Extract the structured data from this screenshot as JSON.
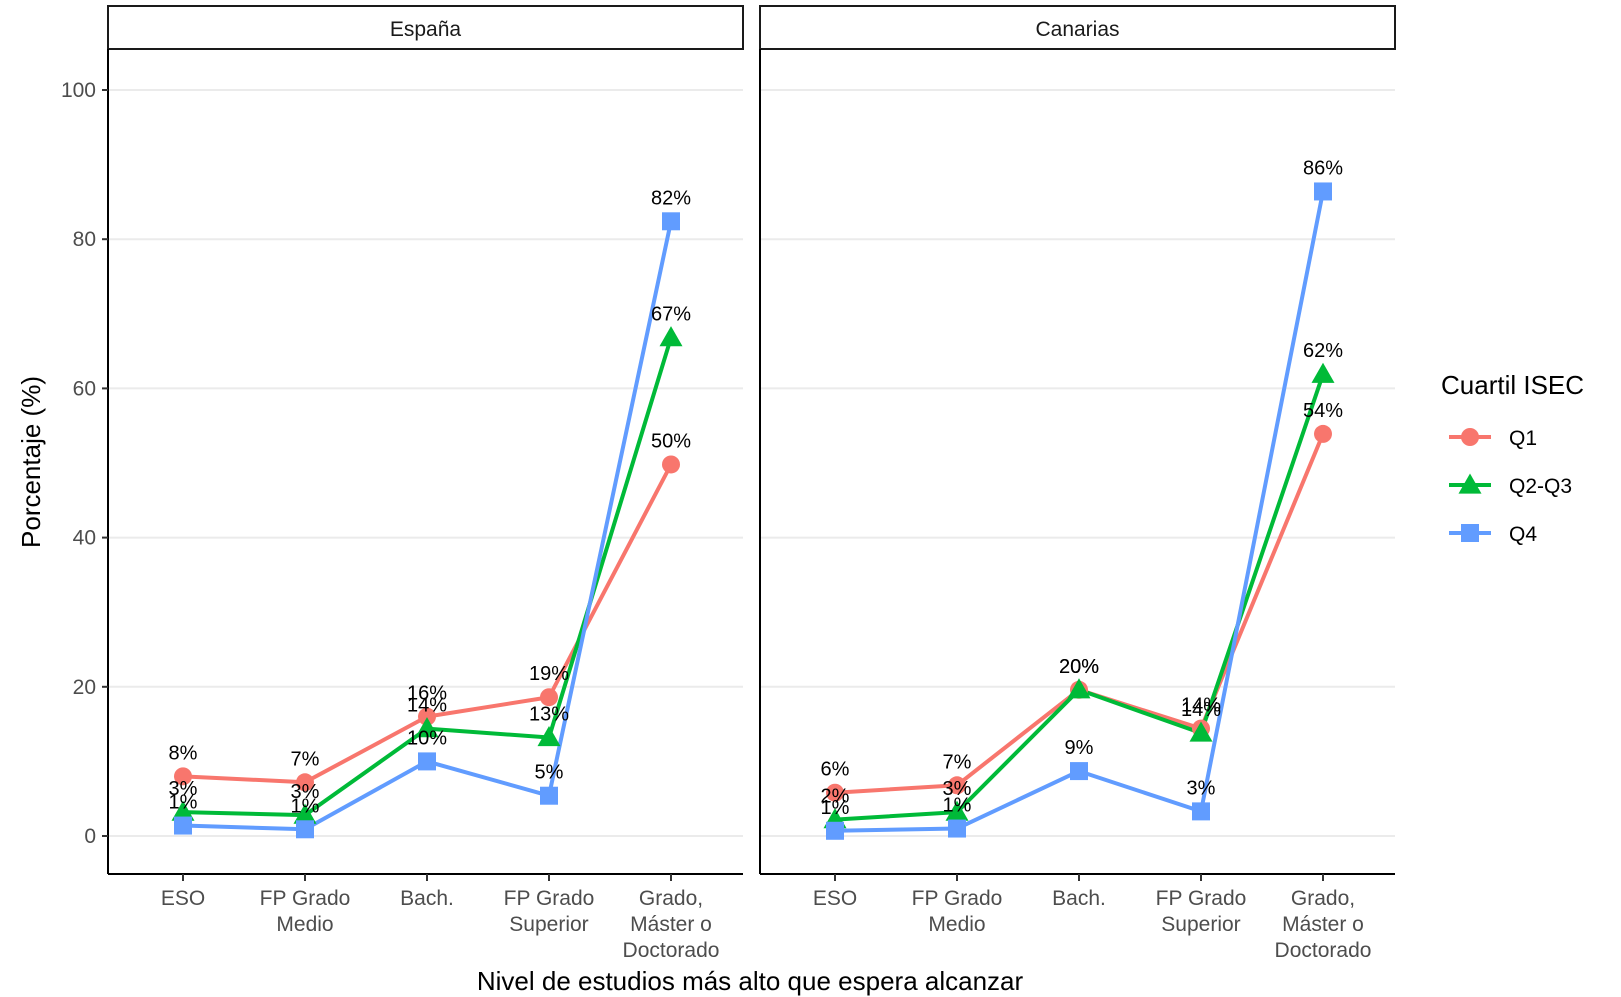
{
  "chart_data": {
    "type": "line",
    "xlabel": "Nivel de estudios más alto que espera alcanzar",
    "ylabel": "Porcentaje (%)",
    "ylim": [
      0,
      100
    ],
    "yticks": [
      0,
      20,
      40,
      60,
      80,
      100
    ],
    "grid": true,
    "categories": [
      [
        "ESO"
      ],
      [
        "FP Grado",
        "Medio"
      ],
      [
        "Bach."
      ],
      [
        "FP Grado",
        "Superior"
      ],
      [
        "Grado,",
        "Máster o",
        "Doctorado"
      ]
    ],
    "legend": {
      "title": "Cuartil ISEC",
      "placement": "right",
      "items": [
        {
          "name": "Q1",
          "color": "#F8766D",
          "marker": "circle"
        },
        {
          "name": "Q2-Q3",
          "color": "#00BA38",
          "marker": "triangle"
        },
        {
          "name": "Q4",
          "color": "#619CFF",
          "marker": "square"
        }
      ]
    },
    "panels": [
      {
        "title": "España",
        "series": [
          {
            "name": "Q1",
            "values": [
              8,
              7.2,
              16,
              18.6,
              49.8
            ],
            "labels": [
              "8%",
              "7%",
              "16%",
              "19%",
              "50%"
            ]
          },
          {
            "name": "Q2-Q3",
            "values": [
              3.2,
              2.8,
              14.4,
              13.2,
              66.8
            ],
            "labels": [
              "3%",
              "3%",
              "14%",
              "13%",
              "67%"
            ]
          },
          {
            "name": "Q4",
            "values": [
              1.4,
              0.9,
              10,
              5.4,
              82.4
            ],
            "labels": [
              "1%",
              "1%",
              "10%",
              "5%",
              "82%"
            ]
          }
        ]
      },
      {
        "title": "Canarias",
        "series": [
          {
            "name": "Q1",
            "values": [
              5.8,
              6.8,
              19.6,
              14.4,
              53.9
            ],
            "labels": [
              "6%",
              "7%",
              "20%",
              "14%",
              "54%"
            ]
          },
          {
            "name": "Q2-Q3",
            "values": [
              2.2,
              3.2,
              19.6,
              13.8,
              61.9
            ],
            "labels": [
              "2%",
              "3%",
              "20%",
              "14%",
              "62%"
            ]
          },
          {
            "name": "Q4",
            "values": [
              0.7,
              1.0,
              8.7,
              3.3,
              86.4
            ],
            "labels": [
              "1%",
              "1%",
              "9%",
              "3%",
              "86%"
            ]
          }
        ]
      }
    ]
  }
}
